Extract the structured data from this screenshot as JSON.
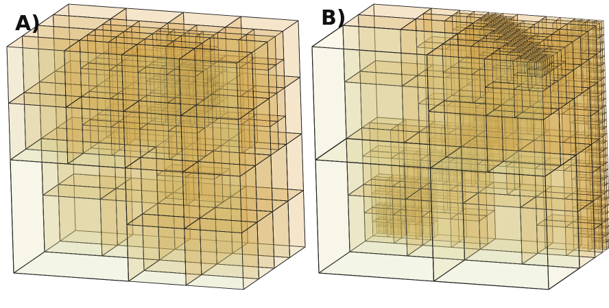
{
  "panels": [
    {
      "label": "A)"
    },
    {
      "label": "B)"
    }
  ]
}
